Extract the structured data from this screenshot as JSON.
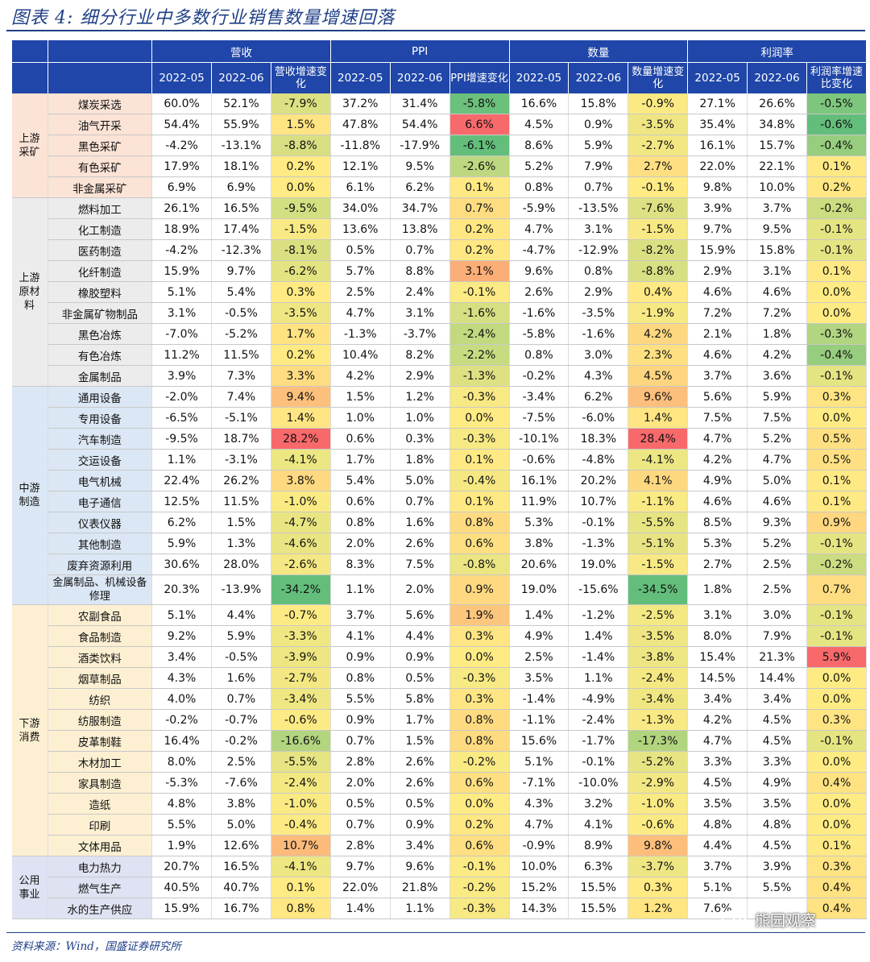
{
  "title": "图表 4:  细分行业中多数行业销售数量增速回落",
  "source": "资料来源：Wind，国盛证券研究所",
  "watermark": "熊园观察",
  "header": {
    "groups": [
      "营收",
      "PPI",
      "数量",
      "利润率"
    ],
    "cols": [
      "2022-05",
      "2022-06",
      "营收增速变化",
      "2022-05",
      "2022-06",
      "PPI增速变化",
      "2022-05",
      "2022-06",
      "数量增速变化",
      "2022-05",
      "2022-06",
      "利润率增速比变化"
    ]
  },
  "groups": [
    {
      "label": "上游采矿",
      "color": "#fbe3d6",
      "rows": [
        {
          "name": "煤炭采选",
          "v": [
            "60.0%",
            "52.1%",
            "-7.9%",
            "37.2%",
            "31.4%",
            "-5.8%",
            "16.6%",
            "15.8%",
            "-0.9%",
            "27.1%",
            "26.6%",
            "-0.5%"
          ]
        },
        {
          "name": "油气开采",
          "v": [
            "54.4%",
            "55.9%",
            "1.5%",
            "47.8%",
            "54.4%",
            "6.6%",
            "4.5%",
            "0.9%",
            "-3.5%",
            "35.4%",
            "34.8%",
            "-0.6%"
          ]
        },
        {
          "name": "黑色采矿",
          "v": [
            "-4.2%",
            "-13.1%",
            "-8.8%",
            "-11.8%",
            "-17.9%",
            "-6.1%",
            "8.6%",
            "5.9%",
            "-2.7%",
            "16.1%",
            "15.7%",
            "-0.4%"
          ]
        },
        {
          "name": "有色采矿",
          "v": [
            "17.9%",
            "18.1%",
            "0.2%",
            "12.1%",
            "9.5%",
            "-2.6%",
            "5.2%",
            "7.9%",
            "2.7%",
            "22.0%",
            "22.1%",
            "0.1%"
          ]
        },
        {
          "name": "非金属采矿",
          "v": [
            "6.9%",
            "6.9%",
            "0.0%",
            "6.1%",
            "6.2%",
            "0.1%",
            "0.8%",
            "0.7%",
            "-0.1%",
            "9.8%",
            "10.0%",
            "0.2%"
          ]
        }
      ]
    },
    {
      "label": "上游原材料",
      "color": "#ececec",
      "rows": [
        {
          "name": "燃料加工",
          "v": [
            "26.1%",
            "16.5%",
            "-9.5%",
            "34.0%",
            "34.7%",
            "0.7%",
            "-5.9%",
            "-13.5%",
            "-7.6%",
            "3.9%",
            "3.7%",
            "-0.2%"
          ]
        },
        {
          "name": "化工制造",
          "v": [
            "18.9%",
            "17.4%",
            "-1.5%",
            "13.6%",
            "13.8%",
            "0.2%",
            "4.7%",
            "3.1%",
            "-1.5%",
            "9.7%",
            "9.5%",
            "-0.1%"
          ]
        },
        {
          "name": "医药制造",
          "v": [
            "-4.2%",
            "-12.3%",
            "-8.1%",
            "0.5%",
            "0.7%",
            "0.2%",
            "-4.7%",
            "-12.9%",
            "-8.2%",
            "15.9%",
            "15.8%",
            "-0.1%"
          ]
        },
        {
          "name": "化纤制造",
          "v": [
            "15.9%",
            "9.7%",
            "-6.2%",
            "5.7%",
            "8.8%",
            "3.1%",
            "9.6%",
            "0.8%",
            "-8.8%",
            "2.9%",
            "3.1%",
            "0.1%"
          ]
        },
        {
          "name": "橡胶塑料",
          "v": [
            "5.1%",
            "5.4%",
            "0.3%",
            "2.5%",
            "2.4%",
            "-0.1%",
            "2.6%",
            "2.9%",
            "0.4%",
            "4.6%",
            "4.6%",
            "0.0%"
          ]
        },
        {
          "name": "非金属矿物制品",
          "v": [
            "3.1%",
            "-0.5%",
            "-3.5%",
            "4.7%",
            "3.1%",
            "-1.6%",
            "-1.6%",
            "-3.5%",
            "-1.9%",
            "7.2%",
            "7.2%",
            "0.0%"
          ]
        },
        {
          "name": "黑色冶炼",
          "v": [
            "-7.0%",
            "-5.2%",
            "1.7%",
            "-1.3%",
            "-3.7%",
            "-2.4%",
            "-5.8%",
            "-1.6%",
            "4.2%",
            "2.1%",
            "1.8%",
            "-0.3%"
          ]
        },
        {
          "name": "有色冶炼",
          "v": [
            "11.2%",
            "11.5%",
            "0.2%",
            "10.4%",
            "8.2%",
            "-2.2%",
            "0.8%",
            "3.0%",
            "2.3%",
            "4.6%",
            "4.2%",
            "-0.4%"
          ]
        },
        {
          "name": "金属制品",
          "v": [
            "3.9%",
            "7.3%",
            "3.3%",
            "4.2%",
            "2.9%",
            "-1.3%",
            "-0.2%",
            "4.3%",
            "4.5%",
            "3.7%",
            "3.6%",
            "-0.1%"
          ]
        }
      ]
    },
    {
      "label": "中游制造",
      "color": "#dbe7f4",
      "rows": [
        {
          "name": "通用设备",
          "v": [
            "-2.0%",
            "7.4%",
            "9.4%",
            "1.5%",
            "1.2%",
            "-0.3%",
            "-3.4%",
            "6.2%",
            "9.6%",
            "5.6%",
            "5.9%",
            "0.3%"
          ]
        },
        {
          "name": "专用设备",
          "v": [
            "-6.5%",
            "-5.1%",
            "1.4%",
            "1.0%",
            "1.0%",
            "0.0%",
            "-7.5%",
            "-6.0%",
            "1.4%",
            "7.5%",
            "7.5%",
            "0.0%"
          ]
        },
        {
          "name": "汽车制造",
          "v": [
            "-9.5%",
            "18.7%",
            "28.2%",
            "0.6%",
            "0.3%",
            "-0.3%",
            "-10.1%",
            "18.3%",
            "28.4%",
            "4.7%",
            "5.2%",
            "0.5%"
          ]
        },
        {
          "name": "交运设备",
          "v": [
            "1.1%",
            "-3.1%",
            "-4.1%",
            "1.7%",
            "1.8%",
            "0.1%",
            "-0.6%",
            "-4.8%",
            "-4.1%",
            "4.2%",
            "4.7%",
            "0.5%"
          ]
        },
        {
          "name": "电气机械",
          "v": [
            "22.4%",
            "26.2%",
            "3.8%",
            "5.4%",
            "5.0%",
            "-0.4%",
            "16.1%",
            "20.2%",
            "4.1%",
            "4.9%",
            "5.0%",
            "0.1%"
          ]
        },
        {
          "name": "电子通信",
          "v": [
            "12.5%",
            "11.5%",
            "-1.0%",
            "0.6%",
            "0.7%",
            "0.1%",
            "11.9%",
            "10.7%",
            "-1.1%",
            "4.6%",
            "4.6%",
            "0.1%"
          ]
        },
        {
          "name": "仪表仪器",
          "v": [
            "6.2%",
            "1.5%",
            "-4.7%",
            "0.8%",
            "1.6%",
            "0.8%",
            "5.3%",
            "-0.1%",
            "-5.5%",
            "8.5%",
            "9.3%",
            "0.9%"
          ]
        },
        {
          "name": "其他制造",
          "v": [
            "5.9%",
            "1.3%",
            "-4.6%",
            "2.0%",
            "2.6%",
            "0.6%",
            "3.8%",
            "-1.3%",
            "-5.1%",
            "5.3%",
            "5.2%",
            "-0.1%"
          ]
        },
        {
          "name": "废弃资源利用",
          "v": [
            "30.6%",
            "28.0%",
            "-2.6%",
            "8.3%",
            "7.5%",
            "-0.8%",
            "20.6%",
            "19.0%",
            "-1.5%",
            "2.7%",
            "2.5%",
            "-0.2%"
          ]
        },
        {
          "name": "金属制品、机械设备修理",
          "v": [
            "20.3%",
            "-13.9%",
            "-34.2%",
            "1.1%",
            "2.0%",
            "0.9%",
            "19.0%",
            "-15.6%",
            "-34.5%",
            "1.8%",
            "2.5%",
            "0.7%"
          ]
        }
      ]
    },
    {
      "label": "下游消费",
      "color": "#fdf0d2",
      "rows": [
        {
          "name": "农副食品",
          "v": [
            "5.1%",
            "4.4%",
            "-0.7%",
            "3.7%",
            "5.6%",
            "1.9%",
            "1.4%",
            "-1.2%",
            "-2.5%",
            "3.1%",
            "3.0%",
            "-0.1%"
          ]
        },
        {
          "name": "食品制造",
          "v": [
            "9.2%",
            "5.9%",
            "-3.3%",
            "4.1%",
            "4.4%",
            "0.3%",
            "4.9%",
            "1.4%",
            "-3.5%",
            "8.0%",
            "7.9%",
            "-0.1%"
          ]
        },
        {
          "name": "酒类饮料",
          "v": [
            "3.4%",
            "-0.5%",
            "-3.9%",
            "0.9%",
            "0.9%",
            "0.0%",
            "2.5%",
            "-1.4%",
            "-3.8%",
            "15.4%",
            "21.3%",
            "5.9%"
          ]
        },
        {
          "name": "烟草制品",
          "v": [
            "4.3%",
            "1.6%",
            "-2.7%",
            "0.8%",
            "0.5%",
            "-0.3%",
            "3.5%",
            "1.1%",
            "-2.4%",
            "14.5%",
            "14.4%",
            "0.0%"
          ]
        },
        {
          "name": "纺织",
          "v": [
            "4.0%",
            "0.7%",
            "-3.4%",
            "5.5%",
            "5.8%",
            "0.3%",
            "-1.4%",
            "-4.9%",
            "-3.4%",
            "3.4%",
            "3.4%",
            "0.0%"
          ]
        },
        {
          "name": "纺服制造",
          "v": [
            "-0.2%",
            "-0.7%",
            "-0.6%",
            "0.9%",
            "1.7%",
            "0.8%",
            "-1.1%",
            "-2.4%",
            "-1.3%",
            "4.2%",
            "4.5%",
            "0.3%"
          ]
        },
        {
          "name": "皮革制鞋",
          "v": [
            "16.4%",
            "-0.2%",
            "-16.6%",
            "0.7%",
            "1.5%",
            "0.8%",
            "15.6%",
            "-1.7%",
            "-17.3%",
            "4.7%",
            "4.5%",
            "-0.1%"
          ]
        },
        {
          "name": "木材加工",
          "v": [
            "8.0%",
            "2.5%",
            "-5.5%",
            "2.8%",
            "2.6%",
            "-0.2%",
            "5.1%",
            "-0.1%",
            "-5.2%",
            "3.3%",
            "3.3%",
            "0.0%"
          ]
        },
        {
          "name": "家具制造",
          "v": [
            "-5.3%",
            "-7.6%",
            "-2.4%",
            "2.0%",
            "2.6%",
            "0.6%",
            "-7.1%",
            "-10.0%",
            "-2.9%",
            "4.5%",
            "4.9%",
            "0.4%"
          ]
        },
        {
          "name": "造纸",
          "v": [
            "4.8%",
            "3.8%",
            "-1.0%",
            "0.5%",
            "0.5%",
            "0.0%",
            "4.3%",
            "3.2%",
            "-1.0%",
            "3.5%",
            "3.5%",
            "0.0%"
          ]
        },
        {
          "name": "印刷",
          "v": [
            "5.5%",
            "5.0%",
            "-0.4%",
            "0.7%",
            "0.9%",
            "0.2%",
            "4.7%",
            "4.1%",
            "-0.6%",
            "4.8%",
            "4.8%",
            "0.0%"
          ]
        },
        {
          "name": "文体用品",
          "v": [
            "1.9%",
            "12.6%",
            "10.7%",
            "2.8%",
            "3.4%",
            "0.6%",
            "-0.9%",
            "8.9%",
            "9.8%",
            "4.4%",
            "4.5%",
            "0.1%"
          ]
        }
      ]
    },
    {
      "label": "公用事业",
      "color": "#dfe2f2",
      "rows": [
        {
          "name": "电力热力",
          "v": [
            "20.7%",
            "16.5%",
            "-4.1%",
            "9.7%",
            "9.6%",
            "-0.1%",
            "10.0%",
            "6.3%",
            "-3.7%",
            "3.7%",
            "3.9%",
            "0.3%"
          ]
        },
        {
          "name": "燃气生产",
          "v": [
            "40.5%",
            "40.7%",
            "0.1%",
            "22.0%",
            "21.8%",
            "-0.2%",
            "15.2%",
            "15.5%",
            "0.3%",
            "5.1%",
            "5.5%",
            "0.4%"
          ]
        },
        {
          "name": "水的生产供应",
          "v": [
            "15.9%",
            "16.7%",
            "0.8%",
            "1.4%",
            "1.1%",
            "-0.3%",
            "14.3%",
            "15.5%",
            "1.2%",
            "7.6%",
            "",
            "0.4%"
          ]
        }
      ]
    }
  ],
  "heat": {
    "green": "#63be7b",
    "yellow": "#ffeb84",
    "red": "#f8696b"
  }
}
